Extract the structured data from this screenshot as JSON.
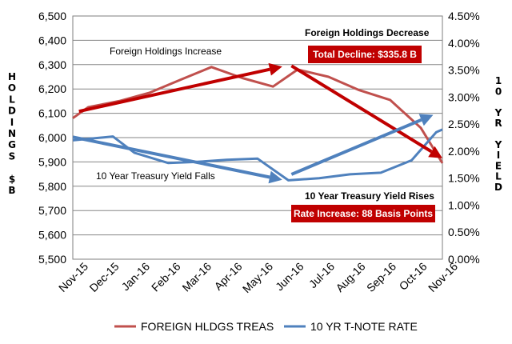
{
  "chart_data": {
    "type": "line",
    "categories": [
      "Nov-15",
      "Dec-15",
      "Jan-16",
      "Feb-16",
      "Mar-16",
      "Apr-16",
      "May-16",
      "Jun-16",
      "Jul-16",
      "Aug-16",
      "Sep-16",
      "Oct-16",
      "Nov-16"
    ],
    "y_left": {
      "label_letters": [
        "H",
        "O",
        "L",
        "D",
        "I",
        "N",
        "G",
        "S",
        "",
        "$",
        "B"
      ],
      "range": [
        5500,
        6500
      ],
      "ticks": [
        "5,500",
        "5,600",
        "5,700",
        "5,800",
        "5,900",
        "6,000",
        "6,100",
        "6,200",
        "6,300",
        "6,400",
        "6,500"
      ]
    },
    "y_right": {
      "label_letters": [
        "1",
        "0",
        "",
        "Y",
        "R",
        "",
        "Y",
        "I",
        "E",
        "L",
        "D"
      ],
      "range": [
        0,
        4.5
      ],
      "ticks": [
        "0.00%",
        "0.50%",
        "1.00%",
        "1.50%",
        "2.00%",
        "2.50%",
        "3.00%",
        "3.50%",
        "4.00%",
        "4.50%"
      ]
    },
    "series": [
      {
        "name": "FOREIGN HLDGS TREAS",
        "axis": "left",
        "color": "#C0504D",
        "x": [
          0,
          0.5,
          1.5,
          2.5,
          3.5,
          4.5,
          5.5,
          6.5,
          7.3,
          8.3,
          9.3,
          10.3,
          11.3,
          12
        ],
        "values": [
          6080,
          6125,
          6150,
          6185,
          6238,
          6290,
          6245,
          6210,
          6280,
          6250,
          6195,
          6155,
          6040,
          5895
        ]
      },
      {
        "name": "10 YR T-NOTE RATE",
        "axis": "right",
        "color": "#4F81BD",
        "x": [
          0,
          1.3,
          2.0,
          3.1,
          4.0,
          5.0,
          6.0,
          7.0,
          8.0,
          9.0,
          10.0,
          11.0,
          11.8,
          12
        ],
        "values": [
          2.2,
          2.27,
          1.97,
          1.78,
          1.8,
          1.84,
          1.86,
          1.46,
          1.5,
          1.57,
          1.6,
          1.83,
          2.35,
          2.4
        ]
      }
    ],
    "annotations": {
      "foreign_increase": "Foreign Holdings Increase",
      "foreign_decrease": "Foreign Holdings Decrease",
      "total_decline": "Total Decline: $335.8 B",
      "yield_falls": "10 Year Treasury Yield Falls",
      "yield_rises": "10 Year Treasury Yield Rises",
      "rate_increase": "Rate Increase: 88 Basis Points"
    },
    "trend_arrows": [
      {
        "color": "#C00000",
        "axis": "left",
        "from": [
          0.2,
          6108
        ],
        "to": [
          6.8,
          6292
        ]
      },
      {
        "color": "#C00000",
        "axis": "left",
        "from": [
          7.1,
          6295
        ],
        "to": [
          12,
          5915
        ]
      },
      {
        "color": "#4F81BD",
        "axis": "right",
        "from": [
          0,
          2.26
        ],
        "to": [
          6.8,
          1.47
        ]
      },
      {
        "color": "#4F81BD",
        "axis": "right",
        "from": [
          7.1,
          1.57
        ],
        "to": [
          11.7,
          2.67
        ]
      }
    ],
    "legend_position": "bottom",
    "grid": true,
    "box_color": "#C00000"
  }
}
